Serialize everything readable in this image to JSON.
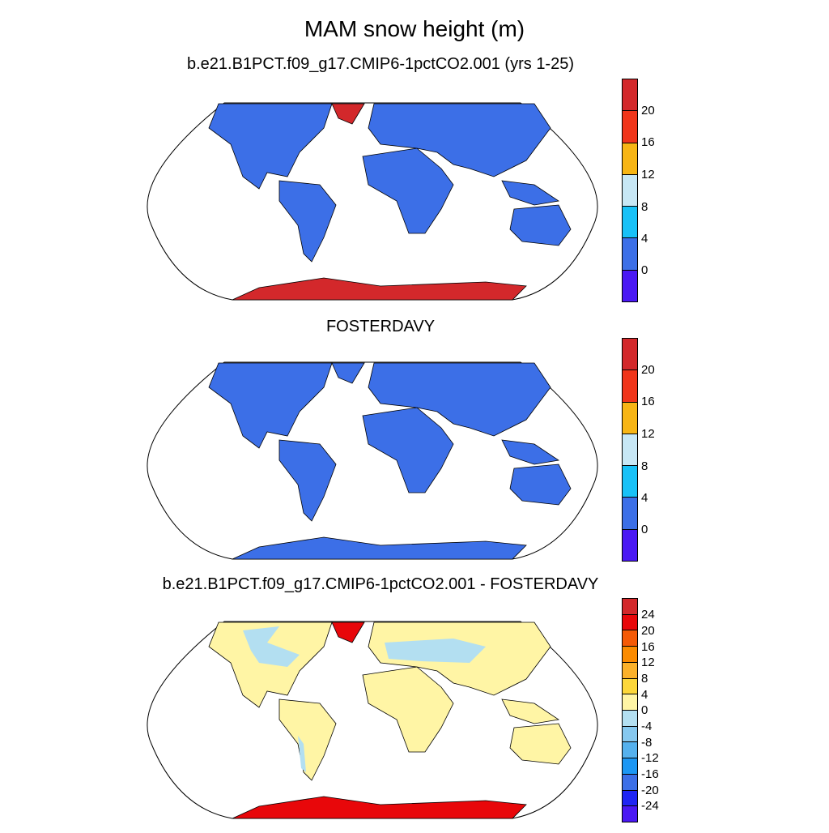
{
  "title": "MAM snow height (m)",
  "panels": [
    {
      "title": "b.e21.B1PCT.f09_g17.CMIP6-1pctCO2.001 (yrs 1-25)",
      "colorbar": {
        "colors": [
          "#d3282b",
          "#f0351a",
          "#f7b515",
          "#c7e7f5",
          "#18c1f7",
          "#3c6fe7",
          "#4a18f4"
        ],
        "labels": [
          "20",
          "16",
          "12",
          "8",
          "4",
          "0"
        ]
      }
    },
    {
      "title": "FOSTERDAVY",
      "colorbar": {
        "colors": [
          "#d3282b",
          "#f0351a",
          "#f7b515",
          "#c7e7f5",
          "#18c1f7",
          "#3c6fe7",
          "#4a18f4"
        ],
        "labels": [
          "20",
          "16",
          "12",
          "8",
          "4",
          "0"
        ]
      }
    },
    {
      "title": "b.e21.B1PCT.f09_g17.CMIP6-1pctCO2.001 - FOSTERDAVY",
      "colorbar": {
        "colors": [
          "#d3282b",
          "#e8070a",
          "#f55a06",
          "#fb8b00",
          "#fbb12a",
          "#fcd73a",
          "#fff5a5",
          "#b3dff1",
          "#86c8ef",
          "#55b1ee",
          "#1c97f4",
          "#3c6fe7",
          "#1f25f4",
          "#4a18f4"
        ],
        "labels": [
          "24",
          "20",
          "16",
          "12",
          "8",
          "4",
          "0",
          "-4",
          "-8",
          "-12",
          "-16",
          "-20",
          "-24"
        ]
      }
    }
  ],
  "colors": {
    "land_base": "#3c6fe7",
    "land_diff": "#fff5a5",
    "diff_negative": "#b3dff1",
    "ice_high": "#d3282b",
    "ice_diff": "#e8070a"
  }
}
